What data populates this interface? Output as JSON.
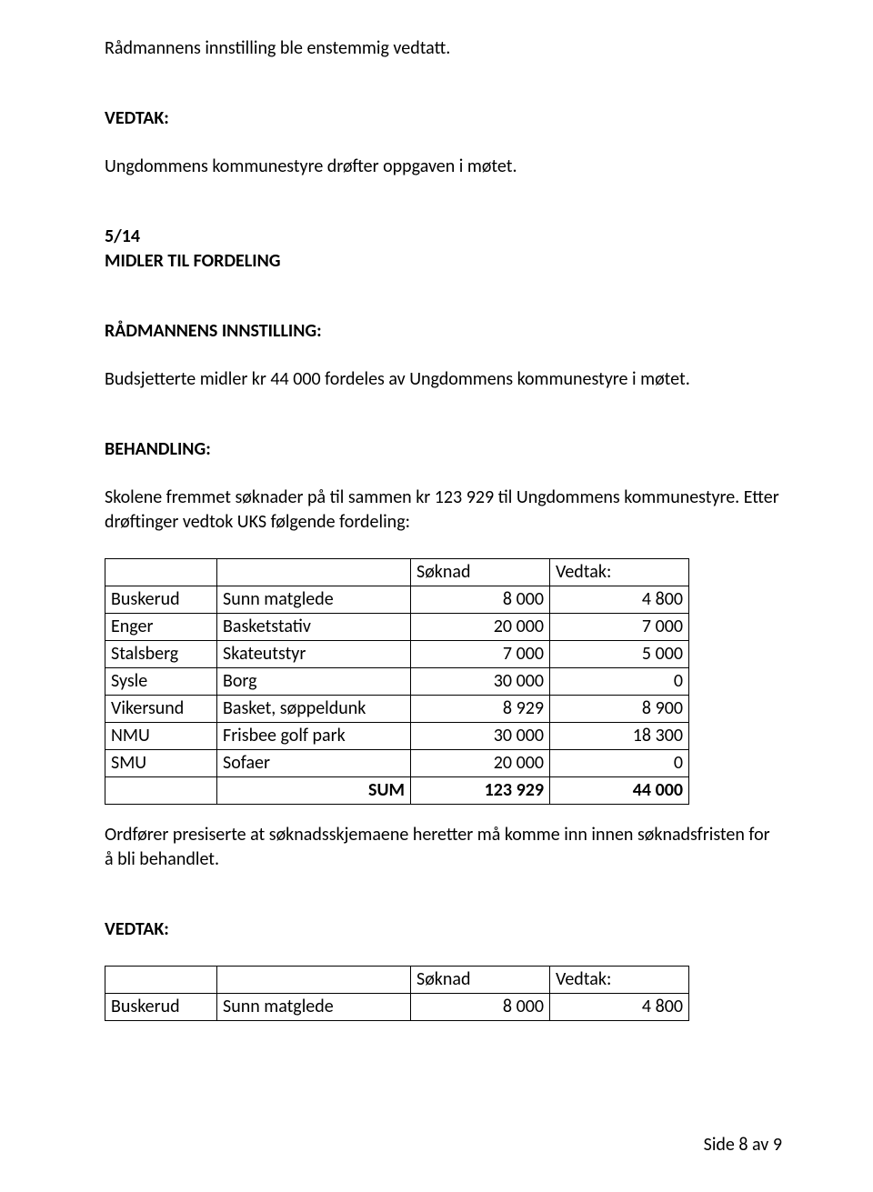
{
  "intro": {
    "line1": "Rådmannens innstilling ble enstemmig vedtatt."
  },
  "vedtak1": {
    "heading": "VEDTAK:",
    "text": "Ungdommens kommunestyre drøfter oppgaven i møtet."
  },
  "item": {
    "num": "5/14",
    "title": "MIDLER TIL FORDELING"
  },
  "radmanns": {
    "heading": "RÅDMANNENS INNSTILLING:",
    "text": "Budsjetterte midler kr 44 000 fordeles av Ungdommens kommunestyre i møtet."
  },
  "behandling": {
    "heading": "BEHANDLING:",
    "text": "Skolene fremmet søknader på til sammen kr 123 929 til Ungdommens kommunestyre. Etter drøftinger vedtok UKS følgende fordeling:"
  },
  "table1": {
    "headers": {
      "c": "Søknad",
      "d": "Vedtak:"
    },
    "rows": [
      {
        "a": "Buskerud",
        "b": "Sunn matglede",
        "c": "8 000",
        "d": "4 800"
      },
      {
        "a": "Enger",
        "b": "Basketstativ",
        "c": "20 000",
        "d": "7 000"
      },
      {
        "a": "Stalsberg",
        "b": "Skateutstyr",
        "c": "7 000",
        "d": "5 000"
      },
      {
        "a": "Sysle",
        "b": "Borg",
        "c": "30 000",
        "d": "0"
      },
      {
        "a": "Vikersund",
        "b": "Basket, søppeldunk",
        "c": "8 929",
        "d": "8 900"
      },
      {
        "a": "NMU",
        "b": "Frisbee golf park",
        "c": "30 000",
        "d": "18 300"
      },
      {
        "a": "SMU",
        "b": "Sofaer",
        "c": "20 000",
        "d": "0"
      }
    ],
    "sum": {
      "label": "SUM",
      "c": "123 929",
      "d": "44 000"
    }
  },
  "ordforer": "Ordfører presiserte at søknadsskjemaene heretter må komme inn innen søknadsfristen for å bli behandlet.",
  "vedtak2": {
    "heading": "VEDTAK:"
  },
  "table2": {
    "headers": {
      "c": "Søknad",
      "d": "Vedtak:"
    },
    "rows": [
      {
        "a": "Buskerud",
        "b": "Sunn matglede",
        "c": "8 000",
        "d": "4 800"
      }
    ]
  },
  "footer": "Side 8 av 9"
}
